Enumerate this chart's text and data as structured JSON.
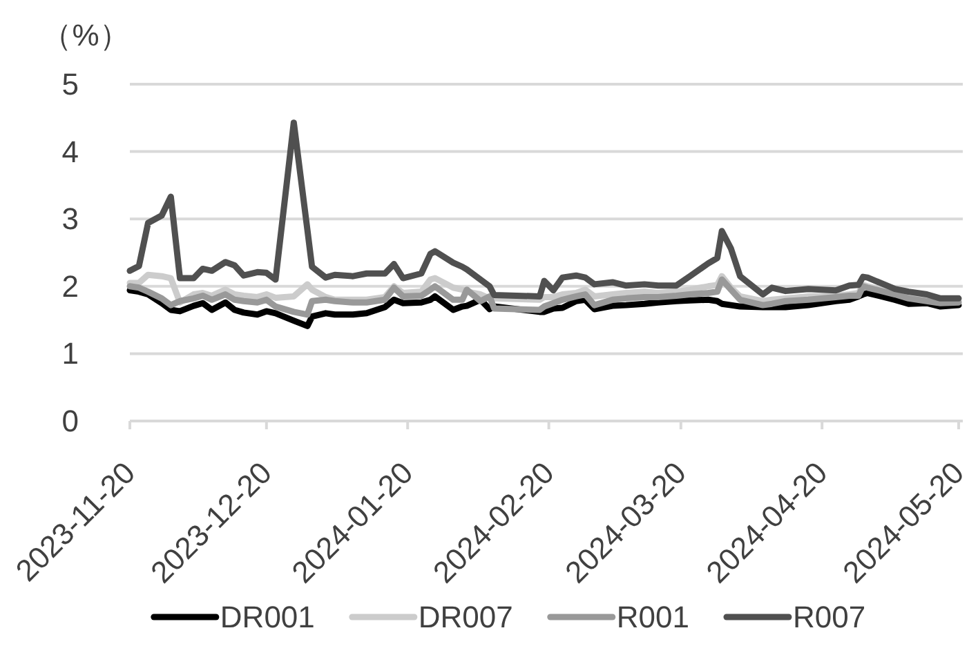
{
  "chart_data": {
    "type": "line",
    "ylabel": "（%）",
    "x": [
      "2023-11-20",
      "2023-11-22",
      "2023-11-24",
      "2023-11-27",
      "2023-11-29",
      "2023-12-01",
      "2023-12-04",
      "2023-12-06",
      "2023-12-08",
      "2023-12-11",
      "2023-12-13",
      "2023-12-15",
      "2023-12-18",
      "2023-12-20",
      "2023-12-22",
      "2023-12-26",
      "2023-12-29",
      "2023-12-30",
      "2024-01-02",
      "2024-01-04",
      "2024-01-08",
      "2024-01-11",
      "2024-01-15",
      "2024-01-17",
      "2024-01-19",
      "2024-01-23",
      "2024-01-25",
      "2024-01-26",
      "2024-01-30",
      "2024-02-01",
      "2024-02-02",
      "2024-02-05",
      "2024-02-07",
      "2024-02-08",
      "2024-02-18",
      "2024-02-19",
      "2024-02-21",
      "2024-02-23",
      "2024-02-26",
      "2024-02-28",
      "2024-03-01",
      "2024-03-05",
      "2024-03-08",
      "2024-03-12",
      "2024-03-15",
      "2024-03-19",
      "2024-03-22",
      "2024-03-26",
      "2024-03-28",
      "2024-03-29",
      "2024-03-31",
      "2024-04-02",
      "2024-04-07",
      "2024-04-09",
      "2024-04-12",
      "2024-04-17",
      "2024-04-23",
      "2024-04-26",
      "2024-04-28",
      "2024-04-29",
      "2024-04-30",
      "2024-05-06",
      "2024-05-09",
      "2024-05-13",
      "2024-05-16",
      "2024-05-20"
    ],
    "series": [
      {
        "name": "DR001",
        "color": "#000000",
        "values": [
          1.94,
          1.92,
          1.88,
          1.75,
          1.65,
          1.63,
          1.71,
          1.75,
          1.65,
          1.76,
          1.65,
          1.61,
          1.58,
          1.63,
          1.6,
          1.49,
          1.41,
          1.55,
          1.6,
          1.58,
          1.58,
          1.6,
          1.69,
          1.8,
          1.75,
          1.76,
          1.8,
          1.85,
          1.65,
          1.7,
          1.71,
          1.8,
          1.66,
          1.7,
          1.62,
          1.62,
          1.67,
          1.68,
          1.78,
          1.8,
          1.66,
          1.71,
          1.72,
          1.74,
          1.76,
          1.78,
          1.79,
          1.8,
          1.78,
          1.74,
          1.72,
          1.7,
          1.69,
          1.69,
          1.69,
          1.72,
          1.78,
          1.8,
          1.85,
          1.88,
          1.9,
          1.8,
          1.74,
          1.75,
          1.7,
          1.72
        ]
      },
      {
        "name": "DR007",
        "color": "#cccccc",
        "values": [
          2.05,
          2.05,
          2.17,
          2.15,
          2.12,
          1.76,
          1.88,
          1.9,
          1.86,
          1.95,
          1.88,
          1.86,
          1.84,
          1.88,
          1.83,
          1.85,
          2.03,
          1.95,
          1.84,
          1.8,
          1.8,
          1.8,
          1.84,
          2.0,
          1.9,
          1.92,
          2.1,
          2.12,
          1.98,
          1.95,
          1.92,
          1.88,
          1.82,
          1.82,
          1.8,
          1.84,
          1.84,
          1.88,
          1.9,
          1.95,
          1.85,
          1.88,
          1.9,
          1.92,
          1.9,
          1.92,
          1.95,
          2.0,
          2.02,
          2.15,
          1.98,
          1.85,
          1.78,
          1.8,
          1.82,
          1.85,
          1.86,
          1.88,
          1.9,
          2.02,
          2.0,
          1.9,
          1.85,
          1.8,
          1.78,
          1.78
        ]
      },
      {
        "name": "R001",
        "color": "#999999",
        "values": [
          2.0,
          1.98,
          1.92,
          1.82,
          1.72,
          1.78,
          1.82,
          1.86,
          1.8,
          1.88,
          1.8,
          1.78,
          1.76,
          1.8,
          1.7,
          1.62,
          1.58,
          1.78,
          1.8,
          1.78,
          1.76,
          1.76,
          1.8,
          1.98,
          1.85,
          1.86,
          1.95,
          2.0,
          1.8,
          1.8,
          1.95,
          1.78,
          1.85,
          1.67,
          1.65,
          1.7,
          1.75,
          1.8,
          1.85,
          1.88,
          1.72,
          1.8,
          1.82,
          1.84,
          1.84,
          1.86,
          1.88,
          1.9,
          1.92,
          2.1,
          1.95,
          1.8,
          1.72,
          1.74,
          1.78,
          1.8,
          1.84,
          1.86,
          1.86,
          2.0,
          1.98,
          1.88,
          1.82,
          1.78,
          1.75,
          1.76
        ]
      },
      {
        "name": "R007",
        "color": "#505050",
        "values": [
          2.23,
          2.3,
          2.94,
          3.05,
          3.33,
          2.12,
          2.12,
          2.26,
          2.23,
          2.36,
          2.31,
          2.16,
          2.21,
          2.2,
          2.1,
          4.43,
          2.83,
          2.29,
          2.13,
          2.17,
          2.15,
          2.19,
          2.19,
          2.33,
          2.12,
          2.19,
          2.48,
          2.52,
          2.35,
          2.29,
          2.25,
          2.1,
          2.0,
          1.87,
          1.85,
          2.08,
          1.94,
          2.13,
          2.16,
          2.13,
          2.03,
          2.06,
          2.01,
          2.03,
          2.01,
          2.01,
          2.15,
          2.34,
          2.42,
          2.82,
          2.56,
          2.15,
          1.88,
          1.98,
          1.93,
          1.96,
          1.94,
          2.01,
          2.02,
          2.14,
          2.13,
          1.96,
          1.92,
          1.88,
          1.82,
          1.82
        ]
      }
    ],
    "xlim": [
      "2023-11-20",
      "2024-05-20"
    ],
    "xticks": [
      "2023-11-20",
      "2023-12-20",
      "2024-01-20",
      "2024-02-20",
      "2024-03-20",
      "2024-04-20",
      "2024-05-20"
    ],
    "ylim": [
      0,
      5
    ],
    "yticks": [
      0,
      1,
      2,
      3,
      4,
      5
    ],
    "grid": "y",
    "legend": "bottom"
  }
}
